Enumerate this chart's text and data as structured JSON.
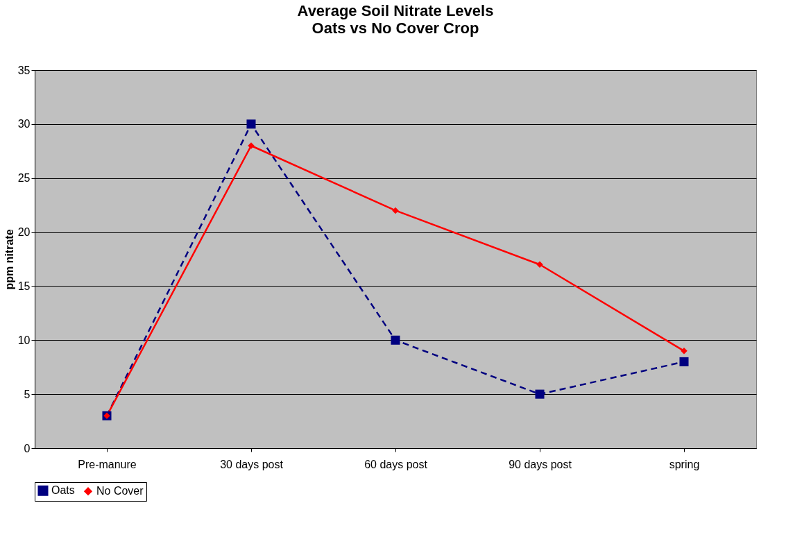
{
  "chart_data": {
    "type": "line",
    "title": "Average Soil Nitrate Levels",
    "subtitle": "Oats vs No Cover Crop",
    "ylabel": "ppm nitrate",
    "categories": [
      "Pre-manure",
      "30 days post",
      "60 days post",
      "90 days post",
      "spring"
    ],
    "series": [
      {
        "name": "Oats",
        "color": "#000080",
        "values": [
          3,
          30,
          10,
          5,
          8
        ],
        "line_style": "dashed",
        "marker": "square"
      },
      {
        "name": "No Cover",
        "color": "#ff0000",
        "values": [
          3,
          28,
          22,
          17,
          9
        ],
        "line_style": "solid",
        "marker": "diamond"
      }
    ],
    "ylim": [
      0,
      35
    ],
    "yticks": [
      0,
      5,
      10,
      15,
      20,
      25,
      30,
      35
    ],
    "grid": "y",
    "legend": "bottom"
  }
}
